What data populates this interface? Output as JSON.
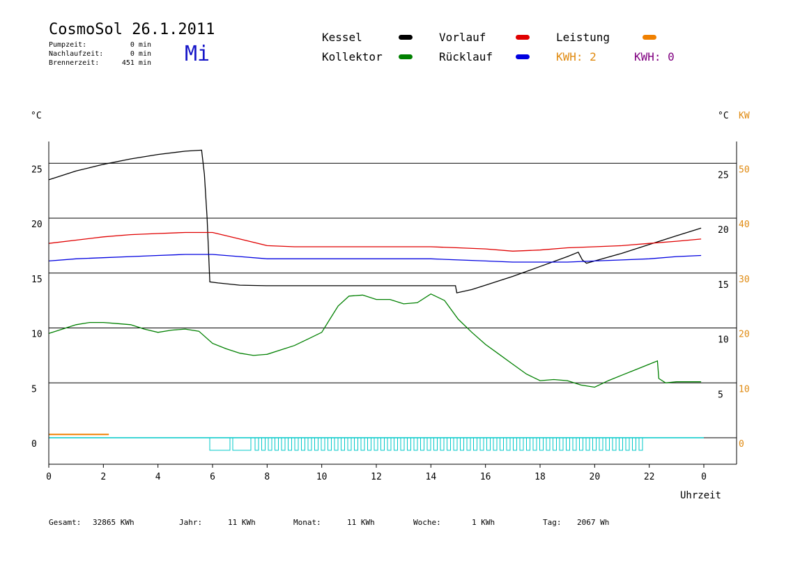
{
  "header": {
    "title": "CosmoSol 26.1.2011",
    "day": "Mi",
    "stats": [
      {
        "label": "Pumpzeit:",
        "value": "0 min"
      },
      {
        "label": "Nachlaufzeit:",
        "value": "0 min"
      },
      {
        "label": "Brennerzeit:",
        "value": "451 min"
      }
    ]
  },
  "legend": {
    "kessel": {
      "label": "Kessel",
      "color": "#000000"
    },
    "kollektor": {
      "label": "Kollektor",
      "color": "#008000"
    },
    "vorlauf": {
      "label": "Vorlauf",
      "color": "#e00000"
    },
    "ruecklauf": {
      "label": "Rücklauf",
      "color": "#0000e0"
    },
    "leistung": {
      "label": "Leistung",
      "color": "#f08000"
    },
    "kwh_orange": "KWH: 2",
    "kwh_purple": "KWH: 0",
    "kwh_orange_color": "#e08a10",
    "kwh_purple_color": "#800080"
  },
  "footer": {
    "gesamt": {
      "label": "Gesamt:",
      "value": "32865 KWh"
    },
    "jahr": {
      "label": "Jahr:",
      "value": "11 KWh"
    },
    "monat": {
      "label": "Monat:",
      "value": "11 KWh"
    },
    "woche": {
      "label": "Woche:",
      "value": "1 KWh"
    },
    "tag": {
      "label": "Tag:",
      "value": "2067 Wh"
    }
  },
  "chart_data": {
    "type": "line",
    "xlabel": "Uhrzeit",
    "ylabel_left": "°C",
    "ylabel_right": "°C",
    "ylabel_right2": "KW",
    "x_ticks": [
      "0",
      "2",
      "4",
      "6",
      "8",
      "10",
      "12",
      "14",
      "16",
      "18",
      "20",
      "22",
      "0"
    ],
    "y_ticks_left": [
      "0",
      "5",
      "10",
      "15",
      "20",
      "25"
    ],
    "y_ticks_right": [
      "5",
      "10",
      "15",
      "20",
      "25"
    ],
    "y_ticks_kw": [
      "0",
      "10",
      "20",
      "30",
      "40",
      "50"
    ],
    "xlim": [
      0,
      24
    ],
    "ylim": [
      -2.5,
      27
    ],
    "grid_y": [
      0,
      5,
      10,
      15,
      20,
      25
    ],
    "series": [
      {
        "name": "Kessel",
        "color": "#000000",
        "x": [
          0,
          1,
          2,
          3,
          4,
          5,
          5.6,
          5.7,
          5.8,
          5.9,
          6.2,
          7,
          8,
          10,
          12,
          14,
          14.9,
          14.95,
          15.5,
          16,
          17,
          18,
          19,
          19.4,
          19.55,
          19.7,
          20,
          21,
          22,
          23,
          23.9
        ],
        "y": [
          23.5,
          24.3,
          24.9,
          25.4,
          25.8,
          26.1,
          26.2,
          24,
          20,
          14.2,
          14.1,
          13.9,
          13.85,
          13.85,
          13.85,
          13.85,
          13.85,
          13.2,
          13.5,
          13.9,
          14.7,
          15.6,
          16.5,
          16.9,
          16.2,
          15.9,
          16.1,
          16.8,
          17.6,
          18.4,
          19.1
        ]
      },
      {
        "name": "Vorlauf",
        "color": "#e00000",
        "x": [
          0,
          1,
          2,
          3,
          4,
          5,
          6,
          7,
          8,
          9,
          10,
          12,
          14,
          15,
          16,
          17,
          18,
          19,
          20,
          21,
          22,
          23,
          23.9
        ],
        "y": [
          17.7,
          18.0,
          18.3,
          18.5,
          18.6,
          18.7,
          18.7,
          18.1,
          17.5,
          17.4,
          17.4,
          17.4,
          17.4,
          17.3,
          17.2,
          17.0,
          17.1,
          17.3,
          17.4,
          17.5,
          17.7,
          17.9,
          18.1
        ]
      },
      {
        "name": "Rücklauf",
        "color": "#0000e0",
        "x": [
          0,
          1,
          2,
          3,
          4,
          5,
          6,
          7,
          8,
          10,
          12,
          14,
          15,
          16,
          17,
          18,
          19,
          20,
          21,
          22,
          23,
          23.9
        ],
        "y": [
          16.1,
          16.3,
          16.4,
          16.5,
          16.6,
          16.7,
          16.7,
          16.5,
          16.3,
          16.3,
          16.3,
          16.3,
          16.2,
          16.1,
          16.0,
          16.0,
          16.0,
          16.1,
          16.2,
          16.3,
          16.5,
          16.6
        ]
      },
      {
        "name": "Kollektor",
        "color": "#008000",
        "x": [
          0,
          0.5,
          1,
          1.5,
          2,
          2.5,
          3,
          3.5,
          4,
          4.5,
          5,
          5.5,
          6,
          6.5,
          7,
          7.5,
          8,
          8.5,
          9,
          9.5,
          10,
          10.3,
          10.6,
          11,
          11.5,
          12,
          12.5,
          13,
          13.5,
          14,
          14.5,
          15,
          15.5,
          16,
          16.5,
          17,
          17.5,
          18,
          18.5,
          19,
          19.5,
          20,
          20.5,
          21,
          21.5,
          22,
          22.3,
          22.35,
          22.6,
          23,
          23.5,
          23.9
        ],
        "y": [
          9.5,
          9.9,
          10.3,
          10.5,
          10.5,
          10.4,
          10.3,
          9.9,
          9.6,
          9.8,
          9.9,
          9.7,
          8.6,
          8.1,
          7.7,
          7.5,
          7.6,
          8.0,
          8.4,
          9.0,
          9.6,
          10.8,
          12.0,
          12.9,
          13.0,
          12.6,
          12.6,
          12.2,
          12.3,
          13.1,
          12.5,
          10.8,
          9.6,
          8.5,
          7.6,
          6.7,
          5.8,
          5.2,
          5.3,
          5.2,
          4.8,
          4.6,
          5.2,
          5.7,
          6.2,
          6.7,
          7.0,
          5.4,
          5.0,
          5.1,
          5.1,
          5.1
        ]
      },
      {
        "name": "Leistung",
        "color": "#f08000",
        "x": [
          0,
          2.2
        ],
        "y": [
          0.3,
          0.3
        ]
      }
    ]
  }
}
